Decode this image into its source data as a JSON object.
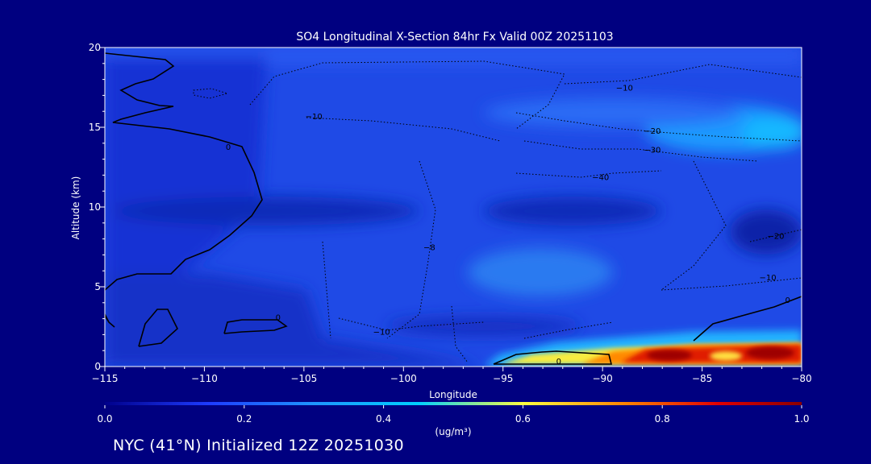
{
  "chart_data": {
    "type": "heatmap",
    "title": "SO4 Longitudinal X-Section 84hr  Fx Valid 00Z 20251103",
    "xlabel": "Longitude",
    "ylabel": "Altitude (km)",
    "xlim": [
      -115,
      -80
    ],
    "ylim": [
      0,
      20
    ],
    "x_ticks": [
      -115,
      -110,
      -105,
      -100,
      -95,
      -90,
      -85,
      -80
    ],
    "x_tick_labels": [
      "−115",
      "−110",
      "−105",
      "−100",
      "−95",
      "−90",
      "−85",
      "−80"
    ],
    "y_ticks": [
      0,
      5,
      10,
      15,
      20
    ],
    "y_tick_labels": [
      "0",
      "5",
      "10",
      "15",
      "20"
    ],
    "colorbar": {
      "min": 0.0,
      "max": 1.0,
      "ticks": [
        0.0,
        0.2,
        0.4,
        0.6,
        0.8,
        1.0
      ],
      "tick_labels": [
        "0.0",
        "0.2",
        "0.4",
        "0.6",
        "0.8",
        "1.0"
      ],
      "unit": "(ug/m³)",
      "colors": [
        "#00008b",
        "#1e3cff",
        "#1e96ff",
        "#00d0ff",
        "#ffff40",
        "#ff8000",
        "#e00000",
        "#8b0000"
      ]
    },
    "contour_labels": [
      {
        "text": "−10",
        "x": -88.9,
        "y": 17.5
      },
      {
        "text": "−10",
        "x": -104.5,
        "y": 15.7
      },
      {
        "text": "−20",
        "x": -87.5,
        "y": 14.8
      },
      {
        "text": "−30",
        "x": -87.5,
        "y": 13.6
      },
      {
        "text": "−40",
        "x": -90.1,
        "y": 11.9
      },
      {
        "text": "−20",
        "x": -81.3,
        "y": 8.2
      },
      {
        "text": "−10",
        "x": -81.7,
        "y": 5.6
      },
      {
        "text": "0",
        "x": -80.7,
        "y": 4.2
      },
      {
        "text": "0",
        "x": -108.8,
        "y": 13.8
      },
      {
        "text": "0",
        "x": -106.3,
        "y": 3.1
      },
      {
        "text": "−10",
        "x": -101.1,
        "y": 2.2
      },
      {
        "text": "−8",
        "x": -98.7,
        "y": 7.5
      },
      {
        "text": "0",
        "x": -92.2,
        "y": 0.35
      }
    ],
    "plume": {
      "x_range": [
        -95.2,
        -80
      ],
      "y_range": [
        0.2,
        1.6
      ],
      "peak": 1.0
    },
    "footer": "NYC (41°N) Initialized 12Z 20251030"
  }
}
